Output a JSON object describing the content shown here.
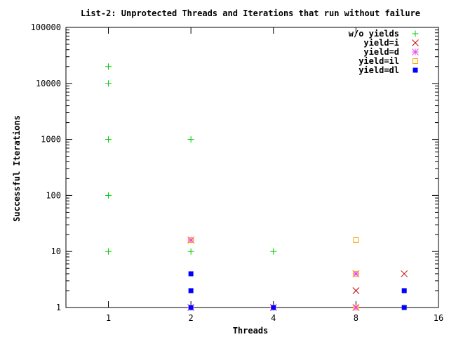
{
  "chart_data": {
    "type": "scatter",
    "title": "List-2: Unprotected Threads and Iterations that run without failure",
    "xlabel": "Threads",
    "ylabel": "Successful Iterations",
    "xscale": "log",
    "yscale": "log",
    "xlim": [
      0.7,
      16
    ],
    "ylim": [
      1,
      100000
    ],
    "xticks": [
      1,
      2,
      4,
      8,
      16
    ],
    "yticks": [
      1,
      10,
      100,
      1000,
      10000,
      100000
    ],
    "xtick_labels": [
      "1",
      "2",
      "4",
      "8",
      "16"
    ],
    "ytick_labels": [
      "1",
      "10",
      "100",
      "1000",
      "10000",
      "100000"
    ],
    "grid": false,
    "legend_position": "top-right",
    "series": [
      {
        "name": "w/o yields",
        "color": "#00cc00",
        "marker": "plus",
        "points": [
          [
            1,
            10
          ],
          [
            1,
            100
          ],
          [
            1,
            1000
          ],
          [
            1,
            10000
          ],
          [
            1,
            20000
          ],
          [
            2,
            10
          ],
          [
            2,
            1000
          ],
          [
            4,
            10
          ]
        ]
      },
      {
        "name": "yield=i",
        "color": "#cc0000",
        "marker": "cross",
        "points": [
          [
            2,
            1
          ],
          [
            2,
            16
          ],
          [
            4,
            1
          ],
          [
            8,
            1
          ],
          [
            8,
            2
          ],
          [
            8,
            4
          ],
          [
            12,
            4
          ]
        ]
      },
      {
        "name": "yield=d",
        "color": "#ee44ee",
        "marker": "star",
        "points": [
          [
            2,
            1
          ],
          [
            2,
            16
          ],
          [
            4,
            1
          ],
          [
            8,
            1
          ],
          [
            8,
            4
          ]
        ]
      },
      {
        "name": "yield=il",
        "color": "#ffa500",
        "marker": "open-square",
        "points": [
          [
            2,
            16
          ],
          [
            8,
            1
          ],
          [
            8,
            4
          ],
          [
            8,
            16
          ]
        ]
      },
      {
        "name": "yield=dl",
        "color": "#0000ff",
        "marker": "filled-square",
        "points": [
          [
            2,
            1
          ],
          [
            2,
            2
          ],
          [
            2,
            4
          ],
          [
            4,
            1
          ],
          [
            12,
            1
          ],
          [
            12,
            2
          ]
        ]
      }
    ]
  }
}
